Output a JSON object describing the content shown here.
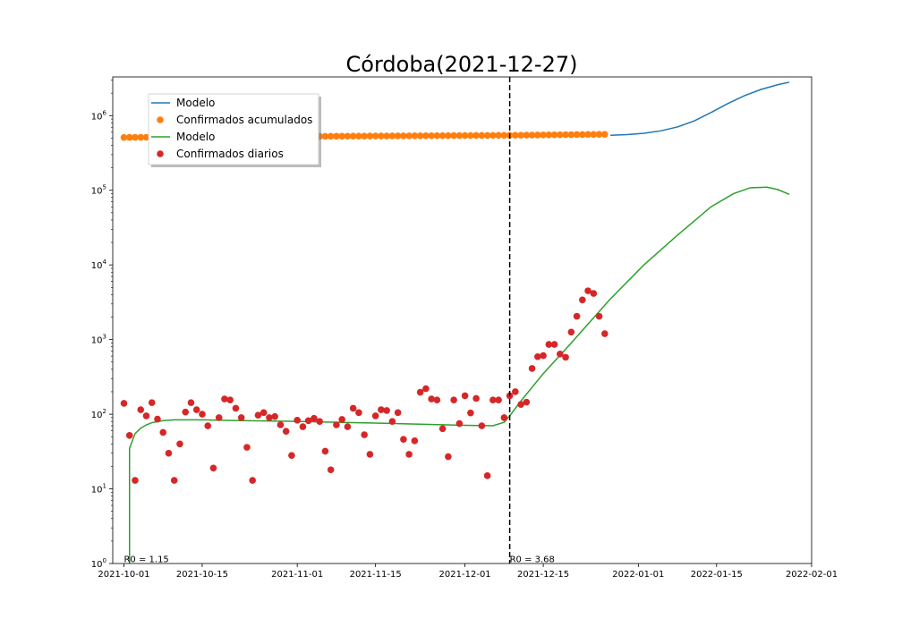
{
  "chart_data": {
    "type": "scatter",
    "title": "Córdoba(2021-12-27)",
    "xlabel": "",
    "ylabel": "",
    "y_scale": "log",
    "ylim": [
      1,
      3300000
    ],
    "xlim": [
      "2021-09-29",
      "2022-02-01"
    ],
    "x_ticks": [
      "2021-10-01",
      "2021-10-15",
      "2021-11-01",
      "2021-11-15",
      "2021-12-01",
      "2021-12-15",
      "2022-01-01",
      "2022-01-15",
      "2022-02-01"
    ],
    "y_tick_labels": [
      {
        "value": 1,
        "base": "10",
        "exp": "0"
      },
      {
        "value": 10,
        "base": "10",
        "exp": "1"
      },
      {
        "value": 100,
        "base": "10",
        "exp": "2"
      },
      {
        "value": 1000,
        "base": "10",
        "exp": "3"
      },
      {
        "value": 10000,
        "base": "10",
        "exp": "4"
      },
      {
        "value": 100000,
        "base": "10",
        "exp": "5"
      },
      {
        "value": 1000000,
        "base": "10",
        "exp": "6"
      }
    ],
    "grid": false,
    "legend": {
      "placement": "upper-left",
      "entries": [
        {
          "label": "Modelo",
          "kind": "line",
          "color": "#1f77b4"
        },
        {
          "label": "Confirmados acumulados",
          "kind": "marker",
          "color": "#ff7f0e"
        },
        {
          "label": "Modelo",
          "kind": "line",
          "color": "#2ca02c"
        },
        {
          "label": "Confirmados diarios",
          "kind": "marker",
          "color": "#d62728"
        }
      ]
    },
    "vline": {
      "x": "2021-12-09",
      "style": "dashed",
      "color": "#000000"
    },
    "annotations": [
      {
        "text": "R0 = 1.15",
        "x": "2021-10-01",
        "y": 1.1
      },
      {
        "text": "R0 = 3.68",
        "x": "2021-12-09",
        "y": 1.1
      }
    ],
    "series": [
      {
        "name": "Modelo",
        "kind": "line",
        "color": "#1f77b4",
        "x": [
          "2021-12-27",
          "2021-12-30",
          "2022-01-02",
          "2022-01-05",
          "2022-01-08",
          "2022-01-11",
          "2022-01-14",
          "2022-01-17",
          "2022-01-20",
          "2022-01-23",
          "2022-01-26",
          "2022-01-28"
        ],
        "y": [
          545000,
          556000,
          580000,
          625000,
          705000,
          850000,
          1100000,
          1450000,
          1850000,
          2250000,
          2600000,
          2800000
        ]
      },
      {
        "name": "Confirmados acumulados",
        "kind": "scatter",
        "color": "#ff7f0e",
        "x_start": "2021-10-01",
        "x_step_days": 1,
        "y": [
          510000,
          511000,
          511500,
          512000,
          512500,
          513000,
          513500,
          514000,
          514500,
          515000,
          515500,
          516000,
          516500,
          517000,
          517500,
          518000,
          518500,
          519000,
          519500,
          520000,
          520500,
          521000,
          521500,
          522000,
          522500,
          523000,
          523500,
          524000,
          524500,
          525000,
          525500,
          526000,
          526500,
          527000,
          527500,
          528000,
          528500,
          529000,
          529500,
          530000,
          530500,
          531000,
          531500,
          532000,
          532500,
          533000,
          533500,
          534000,
          534500,
          535000,
          535500,
          536000,
          536500,
          537000,
          537500,
          538000,
          538500,
          539000,
          539500,
          540000,
          540500,
          541000,
          541500,
          542000,
          542500,
          543000,
          543500,
          544000,
          544500,
          545000,
          546000,
          547000,
          548000,
          549000,
          550000,
          551000,
          552000,
          553000,
          554000,
          555000,
          556000,
          557000,
          558000,
          559000,
          560000,
          561000,
          562000
        ]
      },
      {
        "name": "Modelo",
        "kind": "line",
        "color": "#2ca02c",
        "x": [
          "2021-10-02",
          "2021-10-02",
          "2021-10-03",
          "2021-10-04",
          "2021-10-05",
          "2021-10-06",
          "2021-10-08",
          "2021-10-10",
          "2021-10-15",
          "2021-10-22",
          "2021-11-01",
          "2021-11-15",
          "2021-12-01",
          "2021-12-06",
          "2021-12-08",
          "2021-12-09",
          "2021-12-11",
          "2021-12-15",
          "2021-12-20",
          "2021-12-27",
          "2022-01-02",
          "2022-01-08",
          "2022-01-14",
          "2022-01-18",
          "2022-01-21",
          "2022-01-24",
          "2022-01-26",
          "2022-01-28"
        ],
        "y": [
          1,
          35,
          55,
          65,
          72,
          77,
          82,
          84,
          84,
          82,
          80,
          76,
          71,
          70,
          78,
          95,
          150,
          350,
          900,
          3500,
          10000,
          25000,
          60000,
          90000,
          108000,
          110000,
          102000,
          88000
        ]
      },
      {
        "name": "Confirmados diarios",
        "kind": "scatter",
        "color": "#d62728",
        "x_start": "2021-10-01",
        "x_step_days": 1,
        "y": [
          140,
          52,
          13,
          115,
          95,
          143,
          86,
          57,
          30,
          13,
          40,
          107,
          143,
          115,
          100,
          70,
          19,
          90,
          160,
          155,
          120,
          90,
          36,
          13,
          97,
          105,
          90,
          93,
          72,
          59,
          28,
          83,
          68,
          82,
          88,
          80,
          32,
          18,
          72,
          85,
          68,
          120,
          105,
          53,
          29,
          95,
          115,
          112,
          80,
          105,
          46,
          29,
          44,
          197,
          220,
          160,
          155,
          64,
          27,
          155,
          75,
          177,
          104,
          163,
          70,
          15,
          155,
          155,
          90,
          177,
          200,
          135,
          145,
          410,
          590,
          610,
          860,
          860,
          640,
          580,
          1260,
          2050,
          3400,
          4500,
          4150,
          2050,
          1200
        ]
      }
    ]
  }
}
